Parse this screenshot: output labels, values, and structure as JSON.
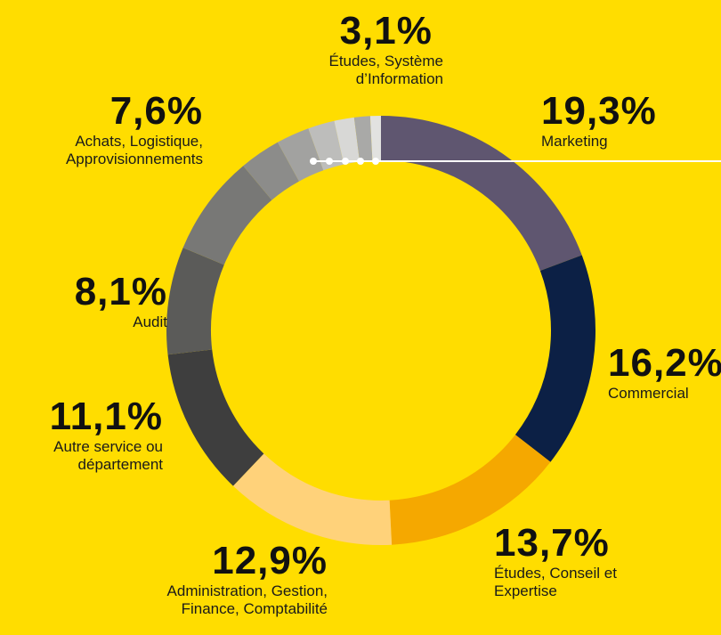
{
  "chart_data": {
    "type": "donut",
    "categories": [
      "Marketing",
      "Commercial",
      "Études, Conseil et\nExpertise",
      "Administration, Gestion,\nFinance, Comptabilité",
      "Autre service ou\ndépartement",
      "Audit",
      "Achats, Logistique,\nApprovisionnements",
      "Études, Système\nd’Information",
      null,
      null,
      null,
      null,
      null
    ],
    "values": [
      19.3,
      16.2,
      13.7,
      12.9,
      11.1,
      8.1,
      7.6,
      3.1,
      2.5,
      2.0,
      1.5,
      1.2,
      0.8
    ],
    "value_labels": [
      "19,3%",
      "16,2%",
      "13,7%",
      "12,9%",
      "11,1%",
      "8,1%",
      "7,6%",
      "3,1%",
      null,
      null,
      null,
      null,
      null
    ],
    "colors": [
      "#5f5670",
      "#0c2045",
      "#f5a800",
      "#ffd27a",
      "#3e3e3e",
      "#5b5b59",
      "#787876",
      "#8c8c8a",
      "#a2a2a0",
      "#bdbdbb",
      "#d8d8d6",
      "#a9a9a7",
      "#e2e2e0"
    ]
  }
}
